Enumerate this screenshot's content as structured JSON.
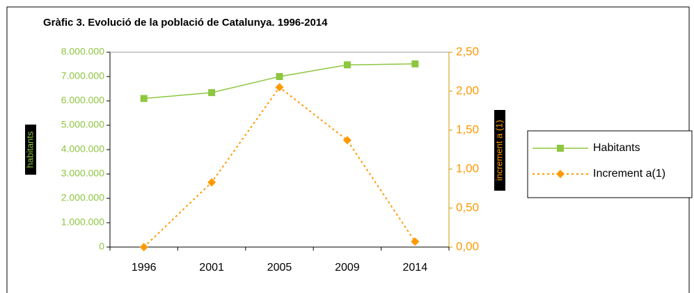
{
  "chart_data": {
    "type": "line",
    "title": "Gràfic 3. Evolució de la població de Catalunya. 1996-2014",
    "y_label": "habitants",
    "y2_label": "increment a (1)",
    "categories": [
      "1996",
      "2001",
      "2005",
      "2009",
      "2014"
    ],
    "series": [
      {
        "name": "Habitants",
        "color": "#8dc63f",
        "marker": "square",
        "values": [
          6100000,
          6340000,
          7000000,
          7480000,
          7520000
        ]
      },
      {
        "name": "Increment a(1)",
        "color": "#ff9900",
        "marker": "diamond",
        "axis": "y2",
        "dashed": true,
        "values": [
          0.0,
          0.83,
          2.05,
          1.37,
          0.07
        ]
      }
    ],
    "ylim": [
      0,
      8000000
    ],
    "yticks": [
      0,
      {
        "value": 1000000,
        "label": "1.000.000"
      },
      {
        "value": 2000000,
        "label": "2.000.000"
      },
      {
        "value": 3000000,
        "label": "3.000.000"
      },
      {
        "value": 4000000,
        "label": "4.000.000"
      },
      {
        "value": 5000000,
        "label": "5.000.000"
      },
      {
        "value": 6000000,
        "label": "6.000.000"
      },
      {
        "value": 7000000,
        "label": "7.000.000"
      },
      {
        "value": 8000000,
        "label": "8.000.000"
      }
    ],
    "y2lim": [
      0,
      2.5
    ],
    "y2ticks": [
      {
        "value": 0,
        "label": "0,00"
      },
      {
        "value": 0.5,
        "label": "0,50"
      },
      {
        "value": 1,
        "label": "1,00"
      },
      {
        "value": 1.5,
        "label": "1,50"
      },
      {
        "value": 2,
        "label": "2,00"
      },
      {
        "value": 2.5,
        "label": "2,50"
      }
    ],
    "legend": "right"
  }
}
